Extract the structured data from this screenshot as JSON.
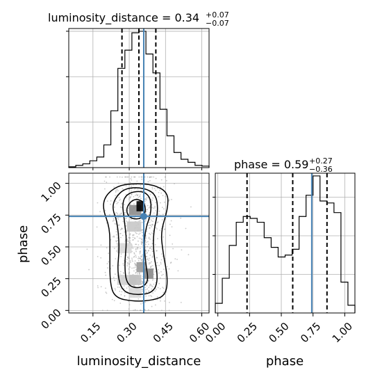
{
  "chart_data": [
    {
      "type": "histogram",
      "panel": "luminosity_distance marginal",
      "title_main": "luminosity_distance = 0.34",
      "title_sup": "+0.07",
      "title_sub": "−0.07",
      "xlim": [
        0.05,
        0.63
      ],
      "bin_edges": [
        0.05,
        0.079,
        0.108,
        0.137,
        0.166,
        0.195,
        0.224,
        0.253,
        0.282,
        0.311,
        0.34,
        0.369,
        0.398,
        0.427,
        0.456,
        0.485,
        0.514,
        0.543,
        0.572,
        0.601,
        0.63
      ],
      "counts": [
        1,
        3,
        5,
        9,
        14,
        30,
        75,
        131,
        155,
        178,
        180,
        150,
        125,
        77,
        42,
        20,
        11,
        7,
        3,
        2
      ],
      "quantile_lines": [
        0.27,
        0.34,
        0.41
      ],
      "truth_x": 0.36,
      "grid": true
    },
    {
      "type": "histogram",
      "panel": "phase marginal",
      "title_main": "phase = 0.59",
      "title_sup": "+0.27",
      "title_sub": "−0.36",
      "xlim": [
        -0.02,
        1.08
      ],
      "xticks": [
        "0.00",
        "0.25",
        "0.50",
        "0.75",
        "1.00"
      ],
      "xlabel": "phase",
      "bin_edges": [
        -0.02,
        0.035,
        0.09,
        0.145,
        0.2,
        0.255,
        0.31,
        0.365,
        0.42,
        0.475,
        0.53,
        0.585,
        0.64,
        0.695,
        0.75,
        0.805,
        0.86,
        0.915,
        0.97,
        1.025,
        1.08
      ],
      "counts": [
        5,
        18,
        35,
        47,
        50,
        49,
        47,
        39,
        34,
        29,
        30,
        33,
        50,
        61,
        71,
        58,
        57,
        52,
        16,
        4
      ],
      "quantile_lines": [
        0.23,
        0.59,
        0.86
      ],
      "truth_x": 0.74,
      "grid": true
    },
    {
      "type": "scatter_density",
      "panel": "2D joint",
      "xlabel": "luminosity_distance",
      "ylabel": "phase",
      "xlim": [
        0.05,
        0.63
      ],
      "ylim": [
        -0.02,
        1.08
      ],
      "xticks": [
        "0.15",
        "0.30",
        "0.45",
        "0.60"
      ],
      "yticks": [
        "0.00",
        "0.25",
        "0.50",
        "0.75",
        "1.00"
      ],
      "truth": [
        0.36,
        0.74
      ],
      "density_peaks": [
        [
          0.33,
          0.8
        ],
        [
          0.34,
          0.3
        ]
      ],
      "grid": true
    }
  ]
}
